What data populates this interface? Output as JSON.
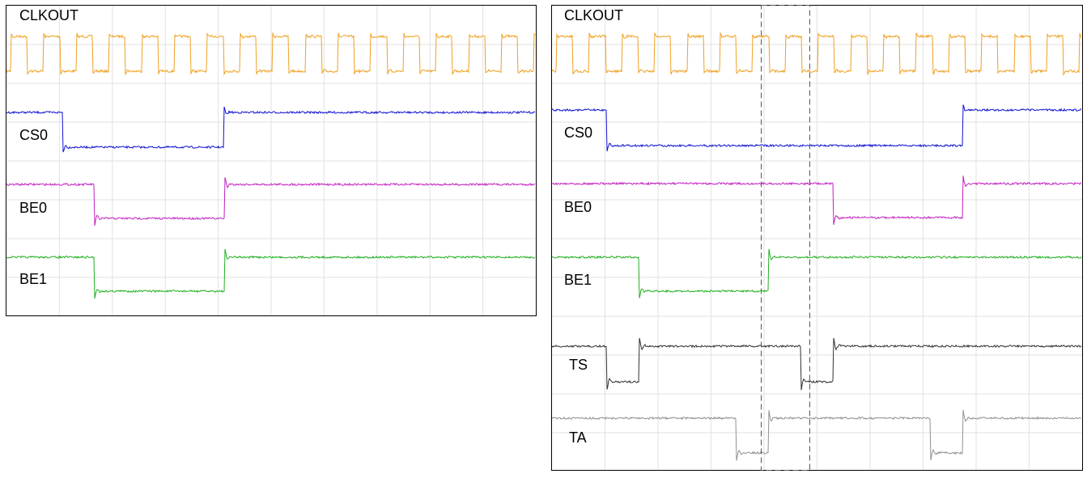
{
  "panels": [
    {
      "signals": [
        {
          "label": "CLKOUT"
        },
        {
          "label": "CS0"
        },
        {
          "label": "BE0"
        },
        {
          "label": "BE1"
        }
      ]
    },
    {
      "signals": [
        {
          "label": "CLKOUT"
        },
        {
          "label": "CS0"
        },
        {
          "label": "BE0"
        },
        {
          "label": "BE1"
        },
        {
          "label": "TS"
        },
        {
          "label": "TA"
        }
      ]
    }
  ]
}
